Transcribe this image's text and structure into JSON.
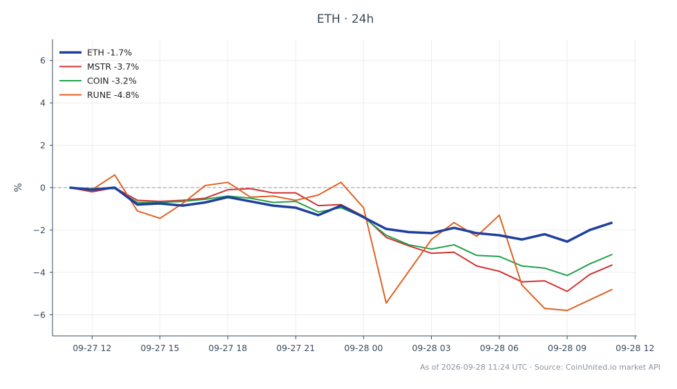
{
  "chart_data": {
    "type": "line",
    "title": "ETH · 24h",
    "xlabel": "",
    "ylabel": "%",
    "ylim": [
      -7,
      7
    ],
    "xlim": [
      "2026-09-27 10:15",
      "2026-09-28 12:05"
    ],
    "xticks": [
      "09-27 12",
      "09-27 15",
      "09-27 18",
      "09-27 21",
      "09-28 00",
      "09-28 03",
      "09-28 06",
      "09-28 09",
      "09-28 12"
    ],
    "yticks": [
      -6,
      -4,
      -2,
      0,
      2,
      4,
      6
    ],
    "x": [
      "2026-09-27 11:00",
      "2026-09-27 12:00",
      "2026-09-27 13:00",
      "2026-09-27 14:00",
      "2026-09-27 15:00",
      "2026-09-27 16:00",
      "2026-09-27 17:00",
      "2026-09-27 18:00",
      "2026-09-27 19:00",
      "2026-09-27 20:00",
      "2026-09-27 21:00",
      "2026-09-27 22:00",
      "2026-09-27 23:00",
      "2026-09-28 00:00",
      "2026-09-28 01:00",
      "2026-09-28 02:00",
      "2026-09-28 03:00",
      "2026-09-28 04:00",
      "2026-09-28 05:00",
      "2026-09-28 06:00",
      "2026-09-28 07:00",
      "2026-09-28 08:00",
      "2026-09-28 09:00",
      "2026-09-28 10:00",
      "2026-09-28 11:00"
    ],
    "grid": true,
    "legend_position": "top-left",
    "reference_line": 0,
    "series": [
      {
        "name": "ETH -1.7%",
        "color": "#1f3f9e",
        "emphasis": true,
        "values": [
          0.0,
          -0.1,
          0.0,
          -0.8,
          -0.75,
          -0.85,
          -0.7,
          -0.45,
          -0.65,
          -0.85,
          -0.95,
          -1.3,
          -0.85,
          -1.4,
          -1.95,
          -2.1,
          -2.15,
          -1.9,
          -2.15,
          -2.25,
          -2.45,
          -2.2,
          -2.55,
          -2.0,
          -1.65
        ]
      },
      {
        "name": "MSTR -3.7%",
        "color": "#d03030",
        "values": [
          0.0,
          -0.2,
          0.0,
          -0.6,
          -0.65,
          -0.6,
          -0.5,
          -0.1,
          -0.05,
          -0.25,
          -0.25,
          -0.85,
          -0.8,
          -1.35,
          -2.35,
          -2.75,
          -3.1,
          -3.05,
          -3.7,
          -3.95,
          -4.45,
          -4.4,
          -4.9,
          -4.1,
          -3.65
        ]
      },
      {
        "name": "COIN -3.2%",
        "color": "#22a04a",
        "values": [
          0.0,
          -0.05,
          -0.05,
          -0.7,
          -0.7,
          -0.65,
          -0.55,
          -0.4,
          -0.5,
          -0.7,
          -0.65,
          -1.15,
          -0.95,
          -1.4,
          -2.25,
          -2.7,
          -2.9,
          -2.7,
          -3.2,
          -3.25,
          -3.7,
          -3.8,
          -4.15,
          -3.6,
          -3.15
        ]
      },
      {
        "name": "RUNE -4.8%",
        "color": "#e06020",
        "values": [
          0.0,
          -0.1,
          0.6,
          -1.1,
          -1.45,
          -0.75,
          0.1,
          0.25,
          -0.45,
          -0.4,
          -0.6,
          -0.35,
          0.25,
          -0.95,
          -5.45,
          -3.95,
          -2.45,
          -1.65,
          -2.3,
          -1.3,
          -4.6,
          -5.7,
          -5.8,
          -5.3,
          -4.8
        ]
      }
    ]
  },
  "footnote": "As of 2026-09-28 11:24 UTC · Source: CoinUnited.io market API"
}
